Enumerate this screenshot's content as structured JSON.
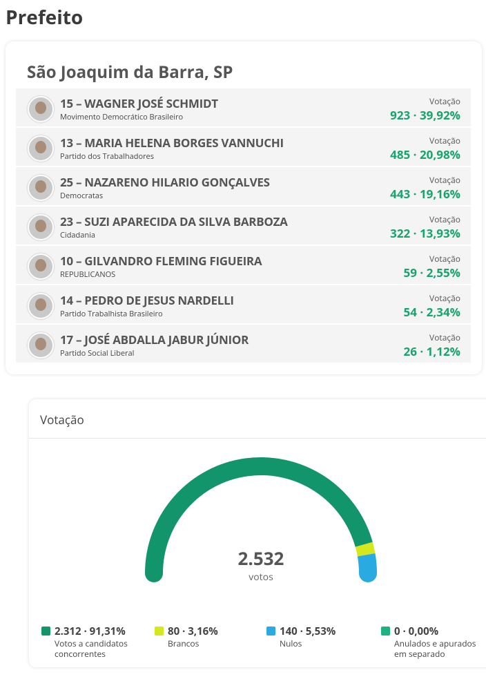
{
  "header": {
    "title": "Prefeito"
  },
  "results": {
    "city": "São Joaquim da Barra, SP",
    "candidates": [
      {
        "name": "15 – WAGNER JOSÉ SCHMIDT",
        "party": "Movimento Democrático Brasileiro",
        "label": "Votação",
        "votes": "923 · 39,92%"
      },
      {
        "name": "13 – MARIA HELENA BORGES VANNUCHI",
        "party": "Partido dos Trabalhadores",
        "label": "Votação",
        "votes": "485 · 20,98%"
      },
      {
        "name": "25 – NAZARENO HILARIO GONÇALVES",
        "party": "Democratas",
        "label": "Votação",
        "votes": "443 · 19,16%"
      },
      {
        "name": "23 – SUZI APARECIDA DA SILVA BARBOZA",
        "party": "Cidadania",
        "label": "Votação",
        "votes": "322 · 13,93%"
      },
      {
        "name": "10 – GILVANDRO FLEMING FIGUEIRA",
        "party": "REPUBLICANOS",
        "label": "Votação",
        "votes": "59 · 2,55%"
      },
      {
        "name": "14 – PEDRO DE JESUS NARDELLI",
        "party": "Partido Trabalhista Brasileiro",
        "label": "Votação",
        "votes": "54 · 2,34%"
      },
      {
        "name": "17 – JOSÉ ABDALLA JABUR JÚNIOR",
        "party": "Partido Social Liberal",
        "label": "Votação",
        "votes": "26 · 1,12%"
      }
    ]
  },
  "turnout": {
    "title": "Votação",
    "total": "2.532",
    "total_unit": "votos",
    "segments": [
      {
        "value": 2312,
        "label": "2.312 · 91,31%",
        "description": "Votos a candidatos concorrentes",
        "color": "#12956a"
      },
      {
        "value": 80,
        "label": "80 · 3,16%",
        "description": "Brancos",
        "color": "#d4e81d"
      },
      {
        "value": 140,
        "label": "140 · 5,53%",
        "description": "Nulos",
        "color": "#29abe2"
      },
      {
        "value": 0,
        "label": "0 · 0,00%",
        "description": "Anulados e apurados em separado",
        "color": "#1db37f"
      }
    ]
  }
}
